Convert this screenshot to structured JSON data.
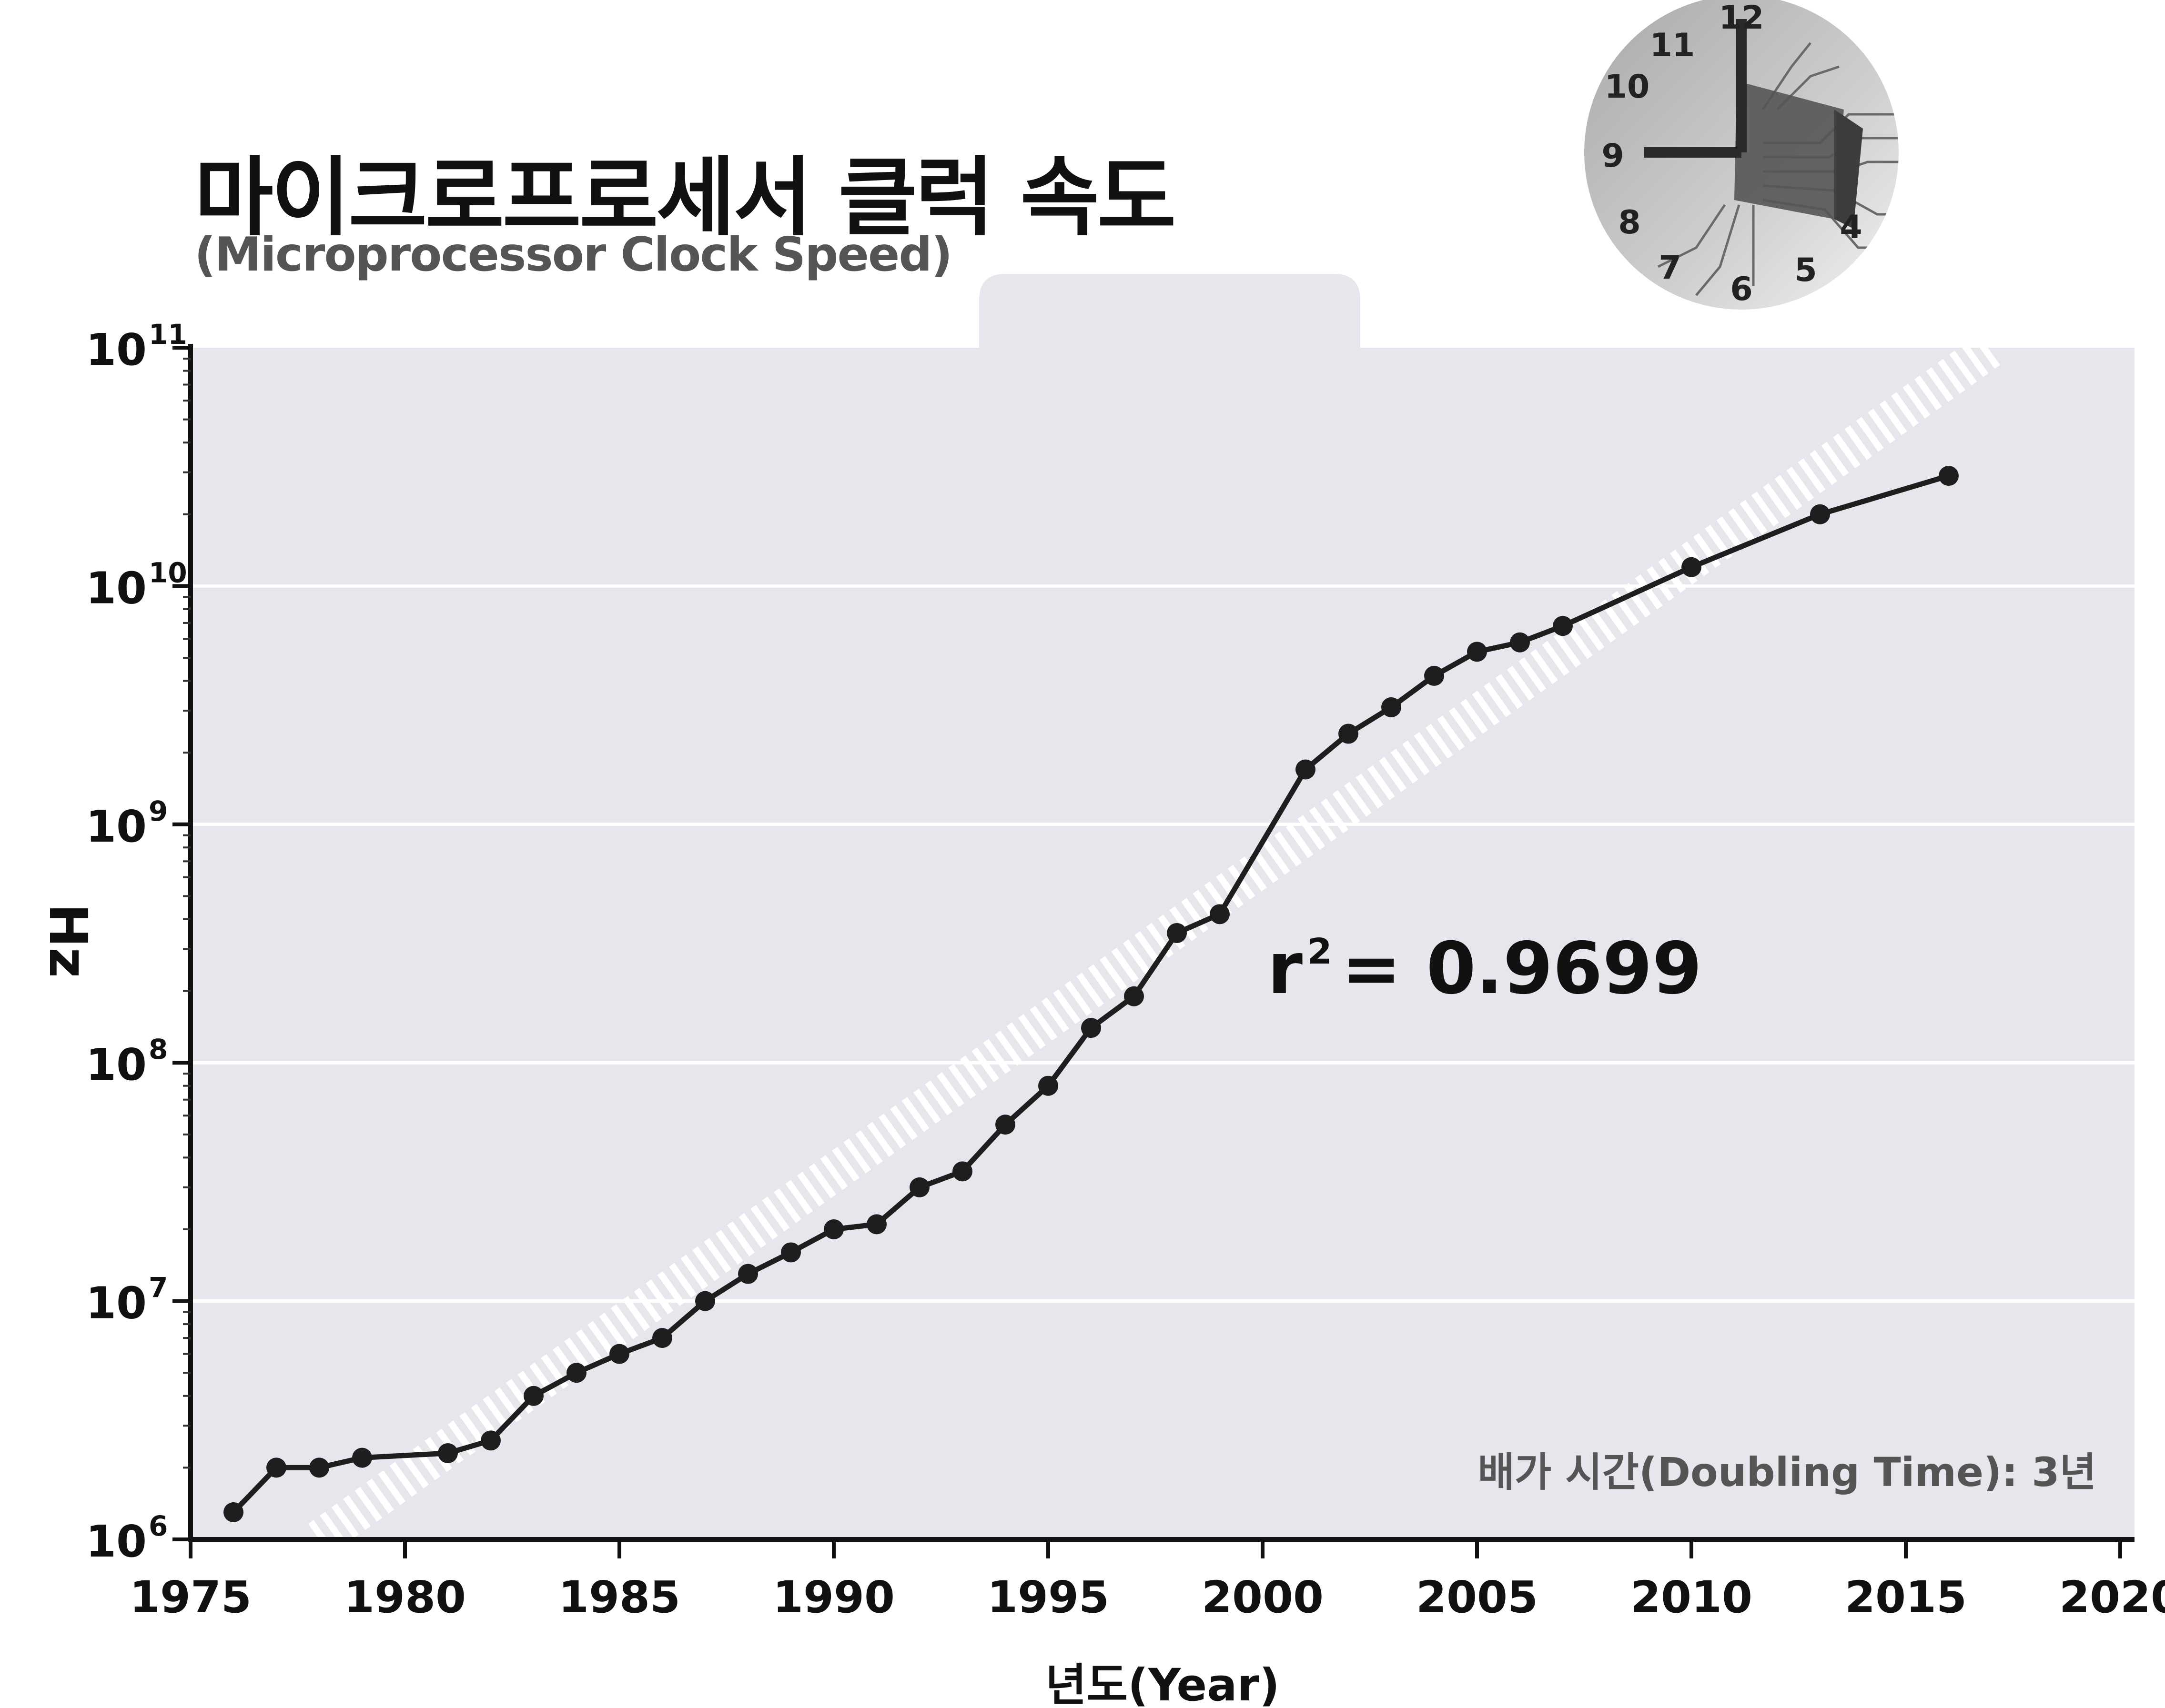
{
  "title": "마이크로프로세서 클럭 속도",
  "subtitle": "(Microprocessor Clock Speed)",
  "colors": {
    "plot_bg": "#e6e7ec",
    "line": "#1e1e1e",
    "trend": "#ffffff",
    "text": "#111111",
    "subtext": "#555555"
  },
  "icon": "clock-chip-icon",
  "chart_data": {
    "type": "line",
    "xlabel": "년도(Year)",
    "ylabel": "Hz",
    "xlim": [
      1975,
      2020
    ],
    "ylim": [
      1000000,
      100000000000
    ],
    "yscale": "log",
    "grid": "horizontal",
    "x_ticks": [
      "1975",
      "1980",
      "1985",
      "1990",
      "1995",
      "2000",
      "2005",
      "2010",
      "2015",
      "2020"
    ],
    "y_ticks": [
      {
        "base": "10",
        "exp": "6"
      },
      {
        "base": "10",
        "exp": "7"
      },
      {
        "base": "10",
        "exp": "8"
      },
      {
        "base": "10",
        "exp": "9"
      },
      {
        "base": "10",
        "exp": "10"
      },
      {
        "base": "10",
        "exp": "11"
      }
    ],
    "series": [
      {
        "points": [
          [
            1976,
            1300000
          ],
          [
            1977,
            2000000
          ],
          [
            1978,
            2000000
          ],
          [
            1979,
            2200000
          ],
          [
            1981,
            2300000
          ],
          [
            1982,
            2600000
          ],
          [
            1983,
            4000000
          ],
          [
            1984,
            5000000
          ],
          [
            1985,
            6000000
          ],
          [
            1986,
            7000000
          ],
          [
            1987,
            10000000
          ],
          [
            1988,
            13000000
          ],
          [
            1989,
            16000000
          ],
          [
            1990,
            20000000
          ],
          [
            1991,
            21000000
          ],
          [
            1992,
            30000000
          ],
          [
            1993,
            35000000
          ],
          [
            1994,
            55000000
          ],
          [
            1995,
            80000000
          ],
          [
            1996,
            140000000
          ],
          [
            1997,
            190000000
          ],
          [
            1998,
            350000000
          ],
          [
            1999,
            420000000
          ],
          [
            2001,
            1700000000
          ],
          [
            2002,
            2400000000
          ],
          [
            2003,
            3100000000
          ],
          [
            2004,
            4200000000
          ],
          [
            2005,
            5300000000
          ],
          [
            2006,
            5800000000
          ],
          [
            2007,
            6800000000
          ],
          [
            2010,
            12000000000
          ],
          [
            2013,
            20000000000
          ],
          [
            2016,
            29000000000
          ]
        ]
      }
    ],
    "trend": {
      "x": [
        1978,
        2017
      ],
      "y": [
        1000000,
        100000000000
      ]
    },
    "annotations": [
      {
        "id": "r2",
        "prefix": "r",
        "sup": "2",
        "text": "= 0.9699"
      },
      {
        "id": "doubling",
        "text": "배가 시간(Doubling Time): 3년"
      }
    ]
  }
}
